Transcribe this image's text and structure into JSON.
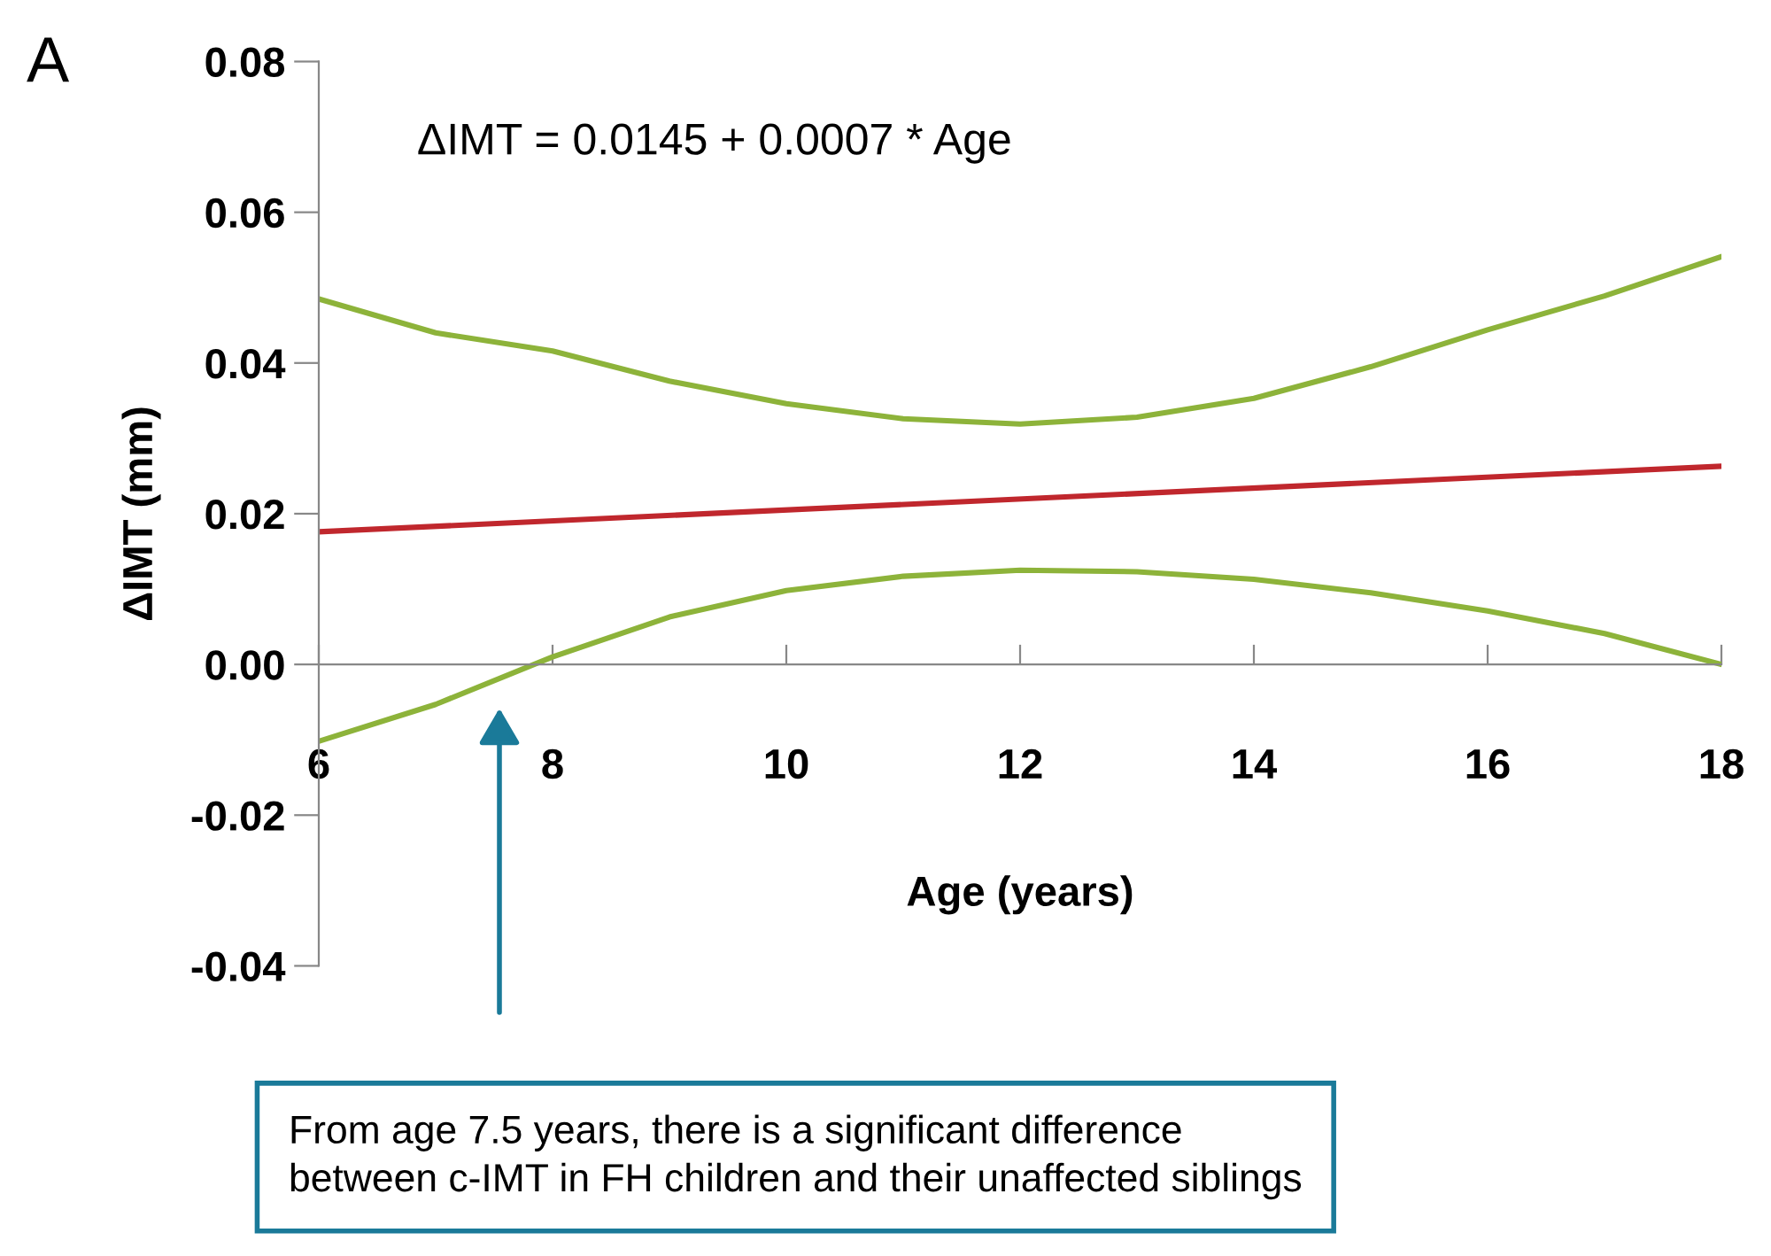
{
  "chart_data": {
    "type": "line",
    "title": "A",
    "xlabel": "Age (years)",
    "ylabel": "ΔIMT (mm)",
    "x": [
      6,
      7,
      8,
      9,
      10,
      11,
      12,
      13,
      14,
      15,
      16,
      17,
      18
    ],
    "series": [
      {
        "color": "#8db33a",
        "values": [
          0.0485,
          0.044,
          0.0416,
          0.0376,
          0.0346,
          0.0326,
          0.0319,
          0.0328,
          0.0353,
          0.0395,
          0.0444,
          0.0489,
          0.0541
        ]
      },
      {
        "color": "#c0272d",
        "x": [
          6,
          18
        ],
        "values": [
          0.0176,
          0.0263
        ]
      },
      {
        "color": "#8db33a",
        "values": [
          -0.0102,
          -0.0053,
          0.001,
          0.0063,
          0.0098,
          0.0117,
          0.0125,
          0.0123,
          0.0113,
          0.0095,
          0.0071,
          0.0041,
          0.0
        ]
      }
    ],
    "xlim": [
      6,
      18
    ],
    "xticks": [
      6,
      8,
      10,
      12,
      14,
      16,
      18
    ],
    "ylim": [
      -0.04,
      0.08
    ],
    "yticks": [
      {
        "value": -0.04,
        "label": "-0.04"
      },
      {
        "value": -0.02,
        "label": "-0.02"
      },
      {
        "value": 0,
        "label": "0.00"
      },
      {
        "value": 0.02,
        "label": "0.02"
      },
      {
        "value": 0.04,
        "label": "0.04"
      },
      {
        "value": 0.06,
        "label": "0.06"
      },
      {
        "value": 0.08,
        "label": "0.08"
      }
    ],
    "annotations": [
      "ΔIMT = 0.0145 + 0.0007 * Age",
      "From age 7.5 years, there is a significant difference\nbetween c-IMT in FH children and their unaffected siblings"
    ],
    "marker": "none",
    "line_style": "solid",
    "grid": false,
    "legend": false
  }
}
